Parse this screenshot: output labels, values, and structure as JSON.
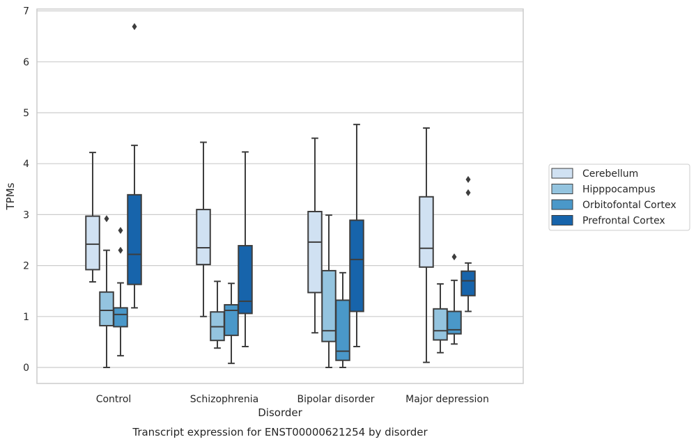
{
  "chart_data": {
    "type": "boxplot",
    "title": "",
    "caption": "Transcript expression for ENST00000621254 by disorder",
    "xlabel": "Disorder",
    "ylabel": "TPMs",
    "ylim": [
      -0.3,
      7.05
    ],
    "yticks": [
      0,
      1,
      2,
      3,
      4,
      5,
      6,
      7
    ],
    "grid": "horizontal",
    "legend_position": "right",
    "categories": [
      "Control",
      "Schizophrenia",
      "Bipolar disorder",
      "Major depression"
    ],
    "series": [
      {
        "name": "Cerebellum",
        "color": "#d0e1f2",
        "boxes": [
          {
            "whislo": 1.68,
            "q1": 1.92,
            "med": 2.42,
            "q3": 2.97,
            "whishi": 4.22,
            "fliers": []
          },
          {
            "whislo": 1.0,
            "q1": 2.02,
            "med": 2.35,
            "q3": 3.1,
            "whishi": 4.42,
            "fliers": []
          },
          {
            "whislo": 0.68,
            "q1": 1.47,
            "med": 2.46,
            "q3": 3.06,
            "whishi": 4.5,
            "fliers": []
          },
          {
            "whislo": 0.1,
            "q1": 1.97,
            "med": 2.34,
            "q3": 3.35,
            "whishi": 4.7,
            "fliers": []
          }
        ]
      },
      {
        "name": "Hipppocampus",
        "color": "#94c4df",
        "boxes": [
          {
            "whislo": 0.0,
            "q1": 0.82,
            "med": 1.12,
            "q3": 1.48,
            "whishi": 2.3,
            "fliers": [
              2.92
            ]
          },
          {
            "whislo": 0.38,
            "q1": 0.53,
            "med": 0.8,
            "q3": 1.09,
            "whishi": 1.69,
            "fliers": []
          },
          {
            "whislo": 0.0,
            "q1": 0.51,
            "med": 0.72,
            "q3": 1.9,
            "whishi": 2.99,
            "fliers": []
          },
          {
            "whislo": 0.29,
            "q1": 0.54,
            "med": 0.72,
            "q3": 1.15,
            "whishi": 1.64,
            "fliers": []
          }
        ]
      },
      {
        "name": "Orbitofontal Cortex",
        "color": "#4a98c9",
        "boxes": [
          {
            "whislo": 0.23,
            "q1": 0.8,
            "med": 1.04,
            "q3": 1.17,
            "whishi": 1.66,
            "fliers": [
              2.3,
              2.69
            ]
          },
          {
            "whislo": 0.08,
            "q1": 0.63,
            "med": 1.12,
            "q3": 1.23,
            "whishi": 1.65,
            "fliers": []
          },
          {
            "whislo": 0.0,
            "q1": 0.14,
            "med": 0.32,
            "q3": 1.32,
            "whishi": 1.86,
            "fliers": []
          },
          {
            "whislo": 0.46,
            "q1": 0.66,
            "med": 0.74,
            "q3": 1.1,
            "whishi": 1.71,
            "fliers": [
              2.17
            ]
          }
        ]
      },
      {
        "name": "Prefrontal Cortex",
        "color": "#1764ab",
        "boxes": [
          {
            "whislo": 1.17,
            "q1": 1.63,
            "med": 2.22,
            "q3": 3.39,
            "whishi": 4.36,
            "fliers": [
              6.69
            ]
          },
          {
            "whislo": 0.41,
            "q1": 1.06,
            "med": 1.3,
            "q3": 2.39,
            "whishi": 4.23,
            "fliers": []
          },
          {
            "whislo": 0.41,
            "q1": 1.1,
            "med": 2.12,
            "q3": 2.89,
            "whishi": 4.77,
            "fliers": []
          },
          {
            "whislo": 1.1,
            "q1": 1.41,
            "med": 1.7,
            "q3": 1.89,
            "whishi": 2.05,
            "fliers": [
              3.43,
              3.69
            ]
          }
        ]
      }
    ]
  }
}
